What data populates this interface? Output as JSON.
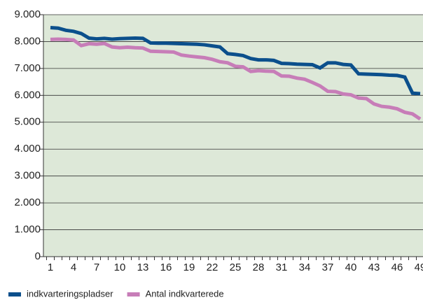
{
  "chart_data": {
    "type": "line",
    "categories": [
      "1",
      null,
      null,
      "4",
      null,
      null,
      "7",
      null,
      null,
      "10",
      null,
      null,
      "13",
      null,
      null,
      "16",
      null,
      null,
      "19",
      null,
      null,
      "22",
      null,
      null,
      "25",
      null,
      null,
      "28",
      null,
      null,
      "31",
      null,
      null,
      "34",
      null,
      null,
      "37",
      null,
      null,
      "40",
      null,
      null,
      "43",
      null,
      null,
      "46",
      null,
      null,
      "49"
    ],
    "series": [
      {
        "name": "indkvarteringspladser",
        "color": "#0b4f8c",
        "values": [
          8520,
          8500,
          8420,
          8380,
          8300,
          8130,
          8100,
          8120,
          8090,
          8110,
          8120,
          8130,
          8120,
          7950,
          7940,
          7940,
          7930,
          7920,
          7910,
          7900,
          7880,
          7840,
          7800,
          7550,
          7520,
          7480,
          7370,
          7320,
          7320,
          7300,
          7190,
          7180,
          7160,
          7150,
          7140,
          7020,
          7210,
          7210,
          7150,
          7130,
          6800,
          6790,
          6780,
          6770,
          6750,
          6740,
          6680,
          6080,
          6060
        ]
      },
      {
        "name": "Antal indkvarterede",
        "color": "#c77db8",
        "values": [
          8080,
          8090,
          8080,
          8060,
          7850,
          7920,
          7900,
          7930,
          7800,
          7770,
          7790,
          7770,
          7760,
          7640,
          7630,
          7620,
          7610,
          7500,
          7460,
          7430,
          7400,
          7340,
          7250,
          7210,
          7080,
          7060,
          6890,
          6920,
          6900,
          6890,
          6720,
          6710,
          6640,
          6600,
          6480,
          6350,
          6150,
          6140,
          6050,
          6020,
          5900,
          5880,
          5680,
          5590,
          5560,
          5500,
          5370,
          5310,
          5120
        ]
      }
    ],
    "ylim": [
      0,
      9000
    ],
    "yticks": [
      0,
      {
        "value": 1000,
        "label": "1.000"
      },
      {
        "value": 2000,
        "label": "2.000"
      },
      {
        "value": 3000,
        "label": "3.000"
      },
      {
        "value": 4000,
        "label": "4.000"
      },
      {
        "value": 5000,
        "label": "5.000"
      },
      {
        "value": 6000,
        "label": "6.000"
      },
      {
        "value": 7000,
        "label": "7.000"
      },
      {
        "value": 8000,
        "label": "8.000"
      },
      {
        "value": 9000,
        "label": "9.000"
      }
    ],
    "grid": true,
    "legend": "bottom"
  }
}
